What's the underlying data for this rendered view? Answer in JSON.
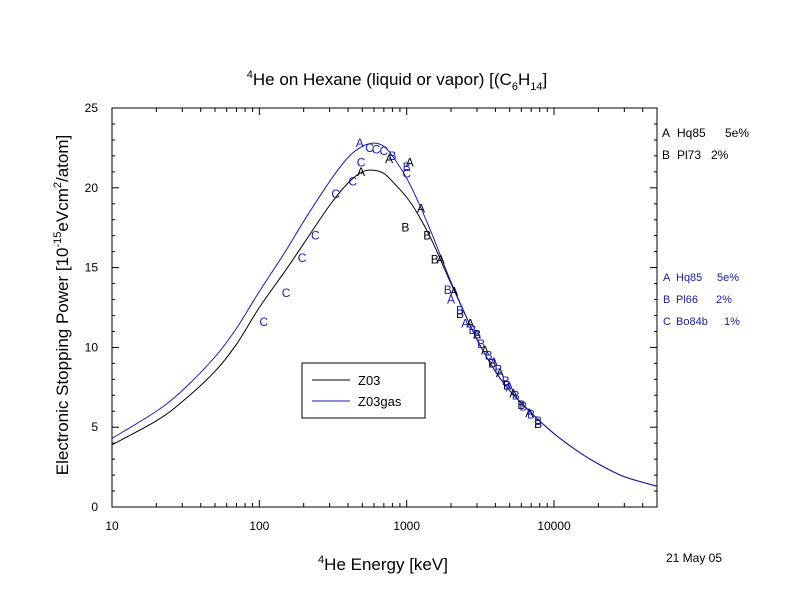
{
  "figure": {
    "title": {
      "sup_he": "4",
      "text1": "He on Hexane (liquid or vapor) [(C",
      "sub_c": "6",
      "h": "H",
      "sub_h": "14",
      "text2": "]"
    },
    "ylabel": {
      "text1": "Electronic Stopping Power [10",
      "exp": "-15",
      "text2": "eVcm",
      "exp2": "2",
      "text3": "/atom]"
    },
    "xlabel": {
      "sup_he": "4",
      "text": "He Energy [keV]"
    },
    "date": "21 May 05",
    "refs_liquid": [
      {
        "letter": "A",
        "ref": "Hq85",
        "err": "5e%"
      },
      {
        "letter": "B",
        "ref": "Pl73",
        "err": "2%"
      }
    ],
    "refs_gas": [
      {
        "letter": "A",
        "ref": "Hq85",
        "err": "5e%"
      },
      {
        "letter": "B",
        "ref": "Pl66",
        "err": "2%"
      },
      {
        "letter": "C",
        "ref": "Bo84b",
        "err": "1%"
      }
    ],
    "legend": [
      {
        "name": "Z03",
        "color": "#000000"
      },
      {
        "name": "Z03gas",
        "color": "#1a1ab4"
      }
    ],
    "colors": {
      "liquid": "#000000",
      "gas": "#1a1ab4"
    }
  },
  "chart_data": {
    "type": "line",
    "x_scale": "log",
    "xlim": [
      10,
      50000
    ],
    "ylim": [
      0,
      25
    ],
    "x_ticks": [
      "10",
      "100",
      "1000",
      "10000"
    ],
    "y_ticks": [
      "0",
      "5",
      "10",
      "15",
      "20",
      "25"
    ],
    "grid": false,
    "legend_position": "center-left",
    "series": [
      {
        "name": "Z03",
        "color": "#000000",
        "points": [
          [
            10,
            3.9
          ],
          [
            20,
            5.4
          ],
          [
            30,
            6.6
          ],
          [
            50,
            8.5
          ],
          [
            70,
            10.2
          ],
          [
            100,
            12.5
          ],
          [
            150,
            14.8
          ],
          [
            200,
            16.5
          ],
          [
            300,
            18.9
          ],
          [
            400,
            20.3
          ],
          [
            500,
            21.0
          ],
          [
            600,
            21.1
          ],
          [
            700,
            20.9
          ],
          [
            800,
            20.4
          ],
          [
            1000,
            19.4
          ],
          [
            1200,
            18.3
          ],
          [
            1500,
            16.6
          ],
          [
            2000,
            14.0
          ],
          [
            3000,
            10.5
          ],
          [
            4000,
            8.5
          ],
          [
            5000,
            7.3
          ],
          [
            7000,
            5.9
          ],
          [
            10000,
            4.6
          ],
          [
            15000,
            3.4
          ],
          [
            20000,
            2.7
          ],
          [
            30000,
            1.9
          ],
          [
            50000,
            1.3
          ]
        ]
      },
      {
        "name": "Z03gas",
        "color": "#1a1ab4",
        "points": [
          [
            10,
            4.3
          ],
          [
            20,
            6.0
          ],
          [
            30,
            7.3
          ],
          [
            50,
            9.4
          ],
          [
            70,
            11.2
          ],
          [
            100,
            13.5
          ],
          [
            150,
            16.0
          ],
          [
            200,
            17.9
          ],
          [
            300,
            20.4
          ],
          [
            400,
            21.9
          ],
          [
            500,
            22.6
          ],
          [
            600,
            22.8
          ],
          [
            700,
            22.6
          ],
          [
            800,
            22.0
          ],
          [
            1000,
            20.6
          ],
          [
            1200,
            19.1
          ],
          [
            1500,
            17.0
          ],
          [
            2000,
            14.1
          ],
          [
            3000,
            10.5
          ],
          [
            4000,
            8.5
          ],
          [
            5000,
            7.3
          ],
          [
            7000,
            5.9
          ],
          [
            10000,
            4.6
          ],
          [
            15000,
            3.4
          ],
          [
            20000,
            2.7
          ],
          [
            30000,
            1.9
          ],
          [
            50000,
            1.3
          ]
        ]
      }
    ],
    "data_points": [
      {
        "label": "A",
        "group": "liquid",
        "x": 490,
        "y": 21.0
      },
      {
        "label": "A",
        "group": "liquid",
        "x": 760,
        "y": 21.8
      },
      {
        "label": "A",
        "group": "liquid",
        "x": 1050,
        "y": 21.6
      },
      {
        "label": "A",
        "group": "liquid",
        "x": 1250,
        "y": 18.7
      },
      {
        "label": "B",
        "group": "liquid",
        "x": 980,
        "y": 17.5
      },
      {
        "label": "B",
        "group": "liquid",
        "x": 1380,
        "y": 17.0
      },
      {
        "label": "B",
        "group": "liquid",
        "x": 1550,
        "y": 15.5
      },
      {
        "label": "A",
        "group": "liquid",
        "x": 1700,
        "y": 15.5
      },
      {
        "label": "A",
        "group": "liquid",
        "x": 2100,
        "y": 13.5
      },
      {
        "label": "B",
        "group": "liquid",
        "x": 2300,
        "y": 12.1
      },
      {
        "label": "A",
        "group": "liquid",
        "x": 2700,
        "y": 11.5
      },
      {
        "label": "B",
        "group": "liquid",
        "x": 3000,
        "y": 10.8
      },
      {
        "label": "A",
        "group": "liquid",
        "x": 3400,
        "y": 9.8
      },
      {
        "label": "B",
        "group": "liquid",
        "x": 3800,
        "y": 9.0
      },
      {
        "label": "A",
        "group": "liquid",
        "x": 4300,
        "y": 8.4
      },
      {
        "label": "B",
        "group": "liquid",
        "x": 4800,
        "y": 7.6
      },
      {
        "label": "A",
        "group": "liquid",
        "x": 5300,
        "y": 7.1
      },
      {
        "label": "B",
        "group": "liquid",
        "x": 6000,
        "y": 6.4
      },
      {
        "label": "A",
        "group": "liquid",
        "x": 6800,
        "y": 5.9
      },
      {
        "label": "B",
        "group": "liquid",
        "x": 7800,
        "y": 5.2
      },
      {
        "label": "A",
        "group": "gas",
        "x": 480,
        "y": 22.8
      },
      {
        "label": "C",
        "group": "gas",
        "x": 560,
        "y": 22.5
      },
      {
        "label": "C",
        "group": "gas",
        "x": 620,
        "y": 22.4
      },
      {
        "label": "C",
        "group": "gas",
        "x": 700,
        "y": 22.3
      },
      {
        "label": "B",
        "group": "gas",
        "x": 800,
        "y": 22.0
      },
      {
        "label": "B",
        "group": "gas",
        "x": 1000,
        "y": 21.3
      },
      {
        "label": "C",
        "group": "gas",
        "x": 1000,
        "y": 20.9
      },
      {
        "label": "C",
        "group": "gas",
        "x": 490,
        "y": 21.6
      },
      {
        "label": "C",
        "group": "gas",
        "x": 430,
        "y": 20.4
      },
      {
        "label": "C",
        "group": "gas",
        "x": 330,
        "y": 19.6
      },
      {
        "label": "C",
        "group": "gas",
        "x": 240,
        "y": 17.0
      },
      {
        "label": "C",
        "group": "gas",
        "x": 195,
        "y": 15.6
      },
      {
        "label": "C",
        "group": "gas",
        "x": 152,
        "y": 13.4
      },
      {
        "label": "C",
        "group": "gas",
        "x": 107,
        "y": 11.6
      },
      {
        "label": "B",
        "group": "gas",
        "x": 1900,
        "y": 13.6
      },
      {
        "label": "A",
        "group": "gas",
        "x": 2000,
        "y": 13.0
      },
      {
        "label": "B",
        "group": "gas",
        "x": 2300,
        "y": 12.3
      },
      {
        "label": "A",
        "group": "gas",
        "x": 2500,
        "y": 11.5
      },
      {
        "label": "B",
        "group": "gas",
        "x": 2800,
        "y": 11.1
      },
      {
        "label": "A",
        "group": "gas",
        "x": 3000,
        "y": 10.8
      },
      {
        "label": "B",
        "group": "gas",
        "x": 3200,
        "y": 10.2
      },
      {
        "label": "B",
        "group": "gas",
        "x": 3600,
        "y": 9.5
      },
      {
        "label": "A",
        "group": "gas",
        "x": 3900,
        "y": 9.1
      },
      {
        "label": "B",
        "group": "gas",
        "x": 4200,
        "y": 8.6
      },
      {
        "label": "B",
        "group": "gas",
        "x": 4700,
        "y": 7.9
      },
      {
        "label": "A",
        "group": "gas",
        "x": 5000,
        "y": 7.5
      },
      {
        "label": "B",
        "group": "gas",
        "x": 5500,
        "y": 7.0
      },
      {
        "label": "B",
        "group": "gas",
        "x": 6200,
        "y": 6.3
      },
      {
        "label": "B",
        "group": "gas",
        "x": 7000,
        "y": 5.8
      },
      {
        "label": "B",
        "group": "gas",
        "x": 7800,
        "y": 5.4
      }
    ]
  }
}
